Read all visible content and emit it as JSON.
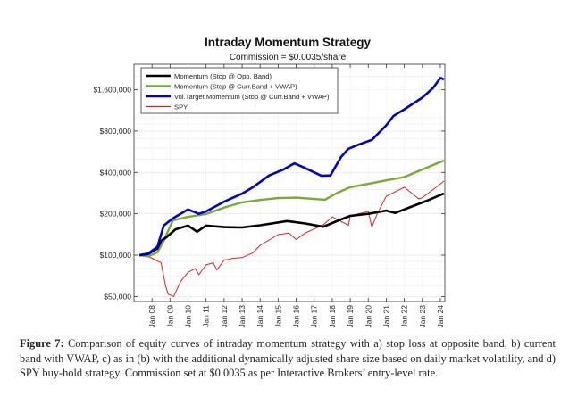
{
  "chart_data": {
    "type": "line",
    "title": "Intraday Momentum Strategy",
    "subtitle": "Commission = $0.0035/share",
    "xlabel": "",
    "ylabel": "",
    "y_scale": "log",
    "ylim": [
      46000,
      2450000
    ],
    "xlim": [
      2007.0,
      2024.25
    ],
    "grid": true,
    "legend_position": "top-left",
    "x_ticks": [
      {
        "value": 2008,
        "label": "Jan 08"
      },
      {
        "value": 2009,
        "label": "Jan 09"
      },
      {
        "value": 2010,
        "label": "Jan 10"
      },
      {
        "value": 2011,
        "label": "Jan 11"
      },
      {
        "value": 2012,
        "label": "Jan 12"
      },
      {
        "value": 2013,
        "label": "Jan 13"
      },
      {
        "value": 2014,
        "label": "Jan 14"
      },
      {
        "value": 2015,
        "label": "Jan 15"
      },
      {
        "value": 2016,
        "label": "Jan 16"
      },
      {
        "value": 2017,
        "label": "Jan 17"
      },
      {
        "value": 2018,
        "label": "Jan 18"
      },
      {
        "value": 2019,
        "label": "Jan 19"
      },
      {
        "value": 2020,
        "label": "Jan 20"
      },
      {
        "value": 2021,
        "label": "Jan 21"
      },
      {
        "value": 2022,
        "label": "Jan 22"
      },
      {
        "value": 2023,
        "label": "Jan 23"
      },
      {
        "value": 2024,
        "label": "Jan 24"
      }
    ],
    "y_ticks": [
      {
        "value": 50000,
        "label": "$50,000"
      },
      {
        "value": 100000,
        "label": "$100,000"
      },
      {
        "value": 200000,
        "label": "$200,000"
      },
      {
        "value": 400000,
        "label": "$400,000"
      },
      {
        "value": 800000,
        "label": "$800,000"
      },
      {
        "value": 1600000,
        "label": "$1,600,000"
      }
    ],
    "series": [
      {
        "name": "Momentum (Stop @ Opp. Band)",
        "color": "#000000",
        "x": [
          2007.3,
          2007.8,
          2008.3,
          2008.5,
          2008.8,
          2009.3,
          2010.0,
          2010.5,
          2011.0,
          2012.0,
          2013.0,
          2014.0,
          2015.5,
          2016.5,
          2017.5,
          2018.3,
          2019.0,
          2020.0,
          2021.0,
          2021.5,
          2022.5,
          2023.3,
          2024.2
        ],
        "y": [
          100000,
          102000,
          112000,
          127000,
          135000,
          154000,
          164000,
          148000,
          164000,
          160000,
          159000,
          165000,
          177000,
          170000,
          161000,
          178000,
          193000,
          200000,
          211000,
          203000,
          228000,
          250000,
          281000
        ]
      },
      {
        "name": "Momentum (Stop @ Curr.Band + VWAP)",
        "color": "#77ac30",
        "x": [
          2007.3,
          2007.8,
          2008.3,
          2008.65,
          2009.15,
          2010.0,
          2011.0,
          2012.0,
          2013.0,
          2014.0,
          2015.0,
          2016.0,
          2017.6,
          2018.3,
          2019.0,
          2020.0,
          2021.0,
          2022.0,
          2023.0,
          2024.2
        ],
        "y": [
          100000,
          98000,
          105000,
          127000,
          179000,
          190000,
          199000,
          222000,
          242000,
          252000,
          260000,
          262000,
          253000,
          285000,
          312000,
          330000,
          350000,
          370000,
          420000,
          488000
        ]
      },
      {
        "name": "Vol.Target Momentum (Stop @ Curr.Band + VWAP)",
        "color": "#0000d0",
        "x": [
          2007.3,
          2007.8,
          2008.3,
          2008.65,
          2009.15,
          2010.0,
          2010.6,
          2011.0,
          2012.0,
          2013.0,
          2013.6,
          2014.5,
          2015.3,
          2015.9,
          2016.5,
          2017.4,
          2017.9,
          2018.5,
          2018.9,
          2019.5,
          2020.2,
          2021.0,
          2021.4,
          2022.0,
          2023.0,
          2023.6,
          2024.0,
          2024.2
        ],
        "y": [
          100000,
          103000,
          115000,
          164000,
          185000,
          215000,
          200000,
          208000,
          245000,
          280000,
          312000,
          380000,
          420000,
          466000,
          430000,
          378000,
          380000,
          520000,
          594000,
          640000,
          690000,
          880000,
          1030000,
          1150000,
          1400000,
          1650000,
          1950000,
          1900000
        ]
      },
      {
        "name": "SPY",
        "color": "#e02020",
        "x": [
          2007.3,
          2007.8,
          2008.0,
          2008.5,
          2008.75,
          2008.9,
          2009.2,
          2009.6,
          2010.0,
          2010.4,
          2010.6,
          2011.0,
          2011.4,
          2011.6,
          2012.0,
          2012.5,
          2013.0,
          2013.6,
          2014.0,
          2015.0,
          2015.6,
          2016.0,
          2016.5,
          2017.5,
          2018.0,
          2018.9,
          2019.0,
          2020.0,
          2020.2,
          2020.5,
          2021.0,
          2022.0,
          2022.8,
          2023.0,
          2023.6,
          2024.2
        ],
        "y": [
          100000,
          98000,
          95000,
          88000,
          60000,
          52000,
          50000,
          65000,
          75000,
          80000,
          72000,
          85000,
          88000,
          78000,
          92000,
          95000,
          96000,
          104000,
          118000,
          141000,
          145000,
          130000,
          145000,
          166000,
          190000,
          165000,
          193000,
          208000,
          160000,
          200000,
          268000,
          312000,
          257000,
          262000,
          300000,
          346000
        ]
      }
    ]
  },
  "caption": {
    "label": "Figure 7:",
    "text": "Comparison of equity curves of intraday momentum strategy with a) stop loss at opposite band, b) current band with VWAP, c) as in (b) with the additional dynamically adjusted share size based on daily market volatility, and d) SPY buy-hold strategy. Commission set at $0.0035 as per Interactive Brokers’ entry-level rate."
  }
}
